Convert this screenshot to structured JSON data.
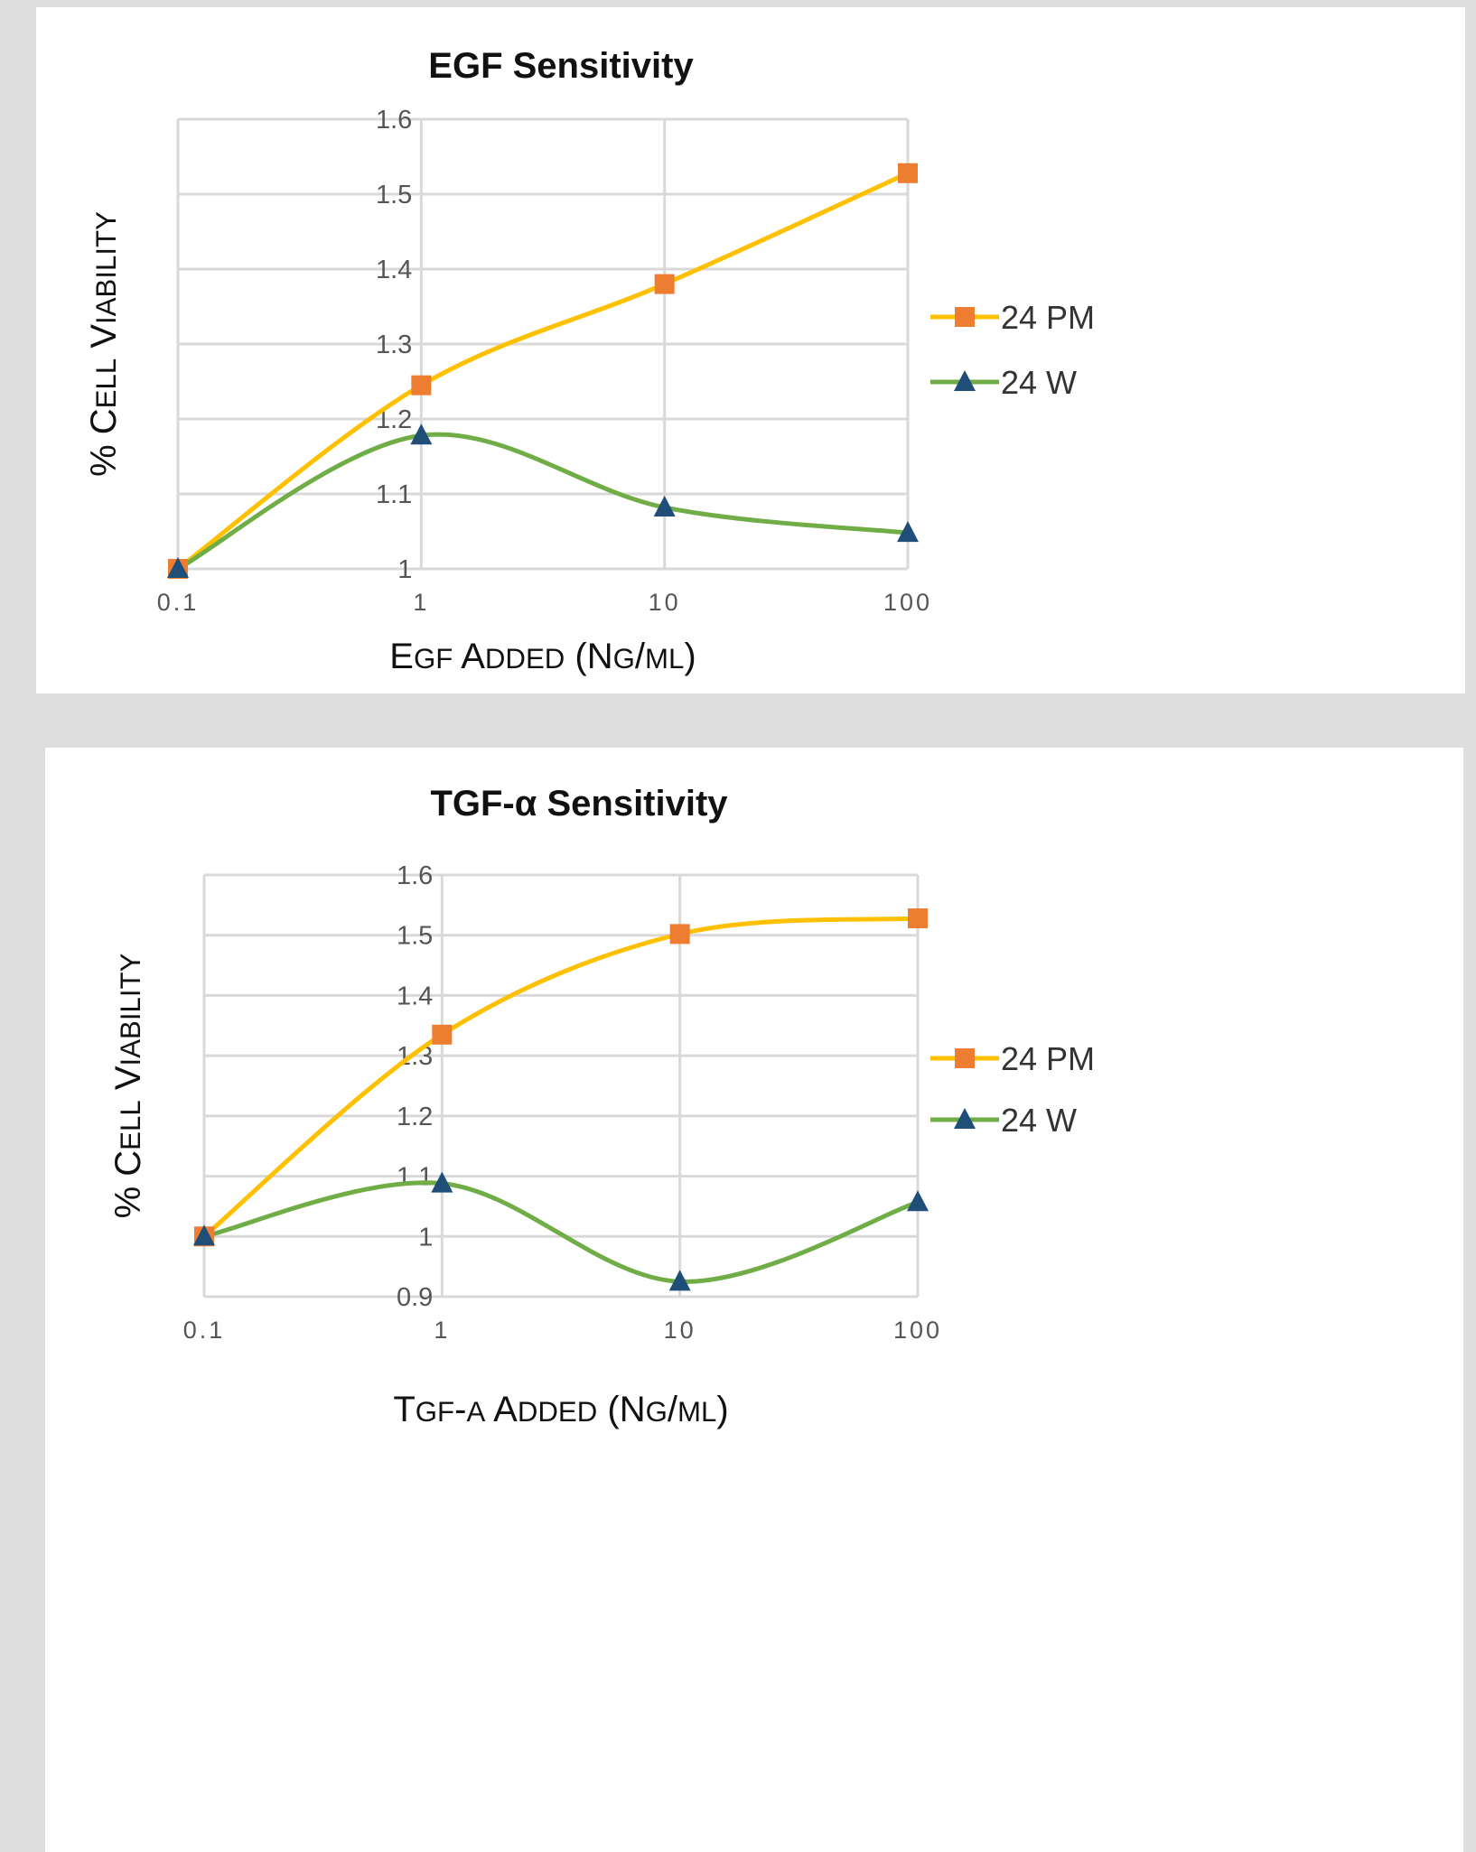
{
  "colors": {
    "page_background": "#dedede",
    "panel_background": "#ffffff",
    "gridline": "#d9d9d9",
    "series_24PM_line": "#ffc000",
    "series_24PM_marker": "#ed7d31",
    "series_24W_line": "#70ad47",
    "series_24W_marker": "#1f4e79"
  },
  "chart_data": [
    {
      "type": "line",
      "title": "EGF Sensitivity",
      "xlabel": "EGF ADDED (NG/ML)",
      "ylabel": "% CELL VIABILITY",
      "xscale": "log",
      "x": [
        0.1,
        1,
        10,
        100
      ],
      "x_tick_labels": [
        "0.1",
        "1",
        "10",
        "100"
      ],
      "ylim": [
        1,
        1.6
      ],
      "y_ticks": [
        1,
        1.1,
        1.2,
        1.3,
        1.4,
        1.5,
        1.6
      ],
      "y_tick_labels": [
        "1",
        "1.1",
        "1.2",
        "1.3",
        "1.4",
        "1.5",
        "1.6"
      ],
      "grid": true,
      "legend_position": "right",
      "series": [
        {
          "name": "24 PM",
          "marker": "square",
          "values": [
            1.0,
            1.245,
            1.38,
            1.528
          ]
        },
        {
          "name": "24 W",
          "marker": "triangle",
          "values": [
            1.0,
            1.178,
            1.082,
            1.048
          ]
        }
      ]
    },
    {
      "type": "line",
      "title": "TGF-α Sensitivity",
      "xlabel": "TGF-A ADDED (NG/ML)",
      "ylabel": "% CELL VIABILITY",
      "xscale": "log",
      "x": [
        0.1,
        1,
        10,
        100
      ],
      "x_tick_labels": [
        "0.1",
        "1",
        "10",
        "100"
      ],
      "ylim": [
        0.9,
        1.6
      ],
      "y_ticks": [
        0.9,
        1,
        1.1,
        1.2,
        1.3,
        1.4,
        1.5,
        1.6
      ],
      "y_tick_labels": [
        "0.9",
        "1",
        "1.1",
        "1.2",
        "1.3",
        "1.4",
        "1.5",
        "1.6"
      ],
      "grid": true,
      "legend_position": "right",
      "series": [
        {
          "name": "24 PM",
          "marker": "square",
          "values": [
            1.0,
            1.335,
            1.502,
            1.528
          ]
        },
        {
          "name": "24 W",
          "marker": "triangle",
          "values": [
            1.0,
            1.088,
            0.925,
            1.057
          ]
        }
      ]
    }
  ]
}
